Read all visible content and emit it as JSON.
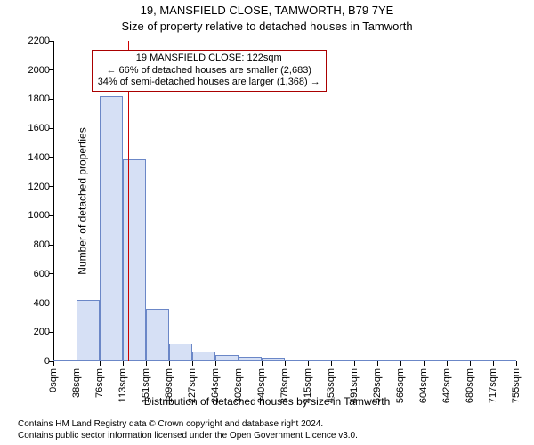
{
  "title_main": "19, MANSFIELD CLOSE, TAMWORTH, B79 7YE",
  "title_sub": "Size of property relative to detached houses in Tamworth",
  "y_axis_label": "Number of detached properties",
  "x_axis_label": "Distribution of detached houses by size in Tamworth",
  "chart": {
    "type": "histogram",
    "ylim": [
      0,
      2200
    ],
    "y_ticks": [
      0,
      200,
      400,
      600,
      800,
      1000,
      1200,
      1400,
      1600,
      1800,
      2000,
      2200
    ],
    "x_tick_labels": [
      "0sqm",
      "38sqm",
      "76sqm",
      "113sqm",
      "151sqm",
      "189sqm",
      "227sqm",
      "264sqm",
      "302sqm",
      "340sqm",
      "378sqm",
      "415sqm",
      "453sqm",
      "491sqm",
      "529sqm",
      "566sqm",
      "604sqm",
      "642sqm",
      "680sqm",
      "717sqm",
      "755sqm"
    ],
    "x_max_sqm": 755,
    "bars": [
      {
        "x0": 0,
        "x1": 38,
        "count": 10
      },
      {
        "x0": 38,
        "x1": 76,
        "count": 420
      },
      {
        "x0": 76,
        "x1": 113,
        "count": 1820
      },
      {
        "x0": 113,
        "x1": 151,
        "count": 1390
      },
      {
        "x0": 151,
        "x1": 189,
        "count": 360
      },
      {
        "x0": 189,
        "x1": 227,
        "count": 120
      },
      {
        "x0": 227,
        "x1": 264,
        "count": 70
      },
      {
        "x0": 264,
        "x1": 302,
        "count": 40
      },
      {
        "x0": 302,
        "x1": 340,
        "count": 30
      },
      {
        "x0": 340,
        "x1": 378,
        "count": 25
      },
      {
        "x0": 378,
        "x1": 415,
        "count": 10
      },
      {
        "x0": 415,
        "x1": 453,
        "count": 8
      },
      {
        "x0": 453,
        "x1": 491,
        "count": 6
      },
      {
        "x0": 491,
        "x1": 529,
        "count": 4
      },
      {
        "x0": 529,
        "x1": 566,
        "count": 3
      },
      {
        "x0": 566,
        "x1": 604,
        "count": 2
      },
      {
        "x0": 604,
        "x1": 642,
        "count": 2
      },
      {
        "x0": 642,
        "x1": 680,
        "count": 1
      },
      {
        "x0": 680,
        "x1": 717,
        "count": 1
      },
      {
        "x0": 717,
        "x1": 755,
        "count": 1
      }
    ],
    "bar_fill": "#d6e0f5",
    "bar_stroke": "#6b87c7",
    "bar_stroke_width": 1,
    "background_color": "#ffffff",
    "axis_color": "#000000",
    "tick_fontsize": 11,
    "label_fontsize": 12,
    "title_fontsize": 13
  },
  "marker": {
    "sqm": 122,
    "line_color": "#cc0000",
    "line_width": 1
  },
  "annotation": {
    "line1": "19 MANSFIELD CLOSE: 122sqm",
    "line2": "← 66% of detached houses are smaller (2,683)",
    "line3": "34% of semi-detached houses are larger (1,368) →",
    "border_color": "#aa0000",
    "background": "#ffffff",
    "fontsize": 11,
    "left_sqm": 62,
    "top_value": 2140
  },
  "footer": {
    "line1": "Contains HM Land Registry data © Crown copyright and database right 2024.",
    "line2": "Contains public sector information licensed under the Open Government Licence v3.0."
  }
}
